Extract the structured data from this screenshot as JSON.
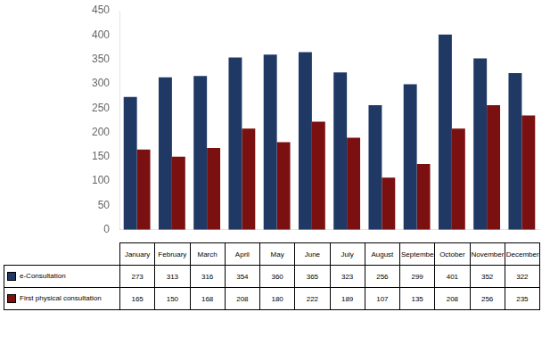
{
  "chart_data": {
    "type": "bar",
    "categories": [
      "January",
      "February",
      "March",
      "April",
      "May",
      "June",
      "July",
      "August",
      "September",
      "October",
      "November",
      "December"
    ],
    "series": [
      {
        "name": "e-Consultation",
        "color": "#1F3864",
        "values": [
          273,
          313,
          316,
          354,
          360,
          365,
          323,
          256,
          299,
          401,
          352,
          322
        ]
      },
      {
        "name": "First physical consultation",
        "color": "#7B1010",
        "values": [
          165,
          150,
          168,
          208,
          180,
          222,
          189,
          107,
          135,
          208,
          256,
          235
        ]
      }
    ],
    "ylim": [
      0,
      450
    ],
    "yticks": [
      0,
      50,
      100,
      150,
      200,
      250,
      300,
      350,
      400,
      450
    ],
    "grid": false,
    "tick_labels": "y",
    "data_labels": true
  }
}
